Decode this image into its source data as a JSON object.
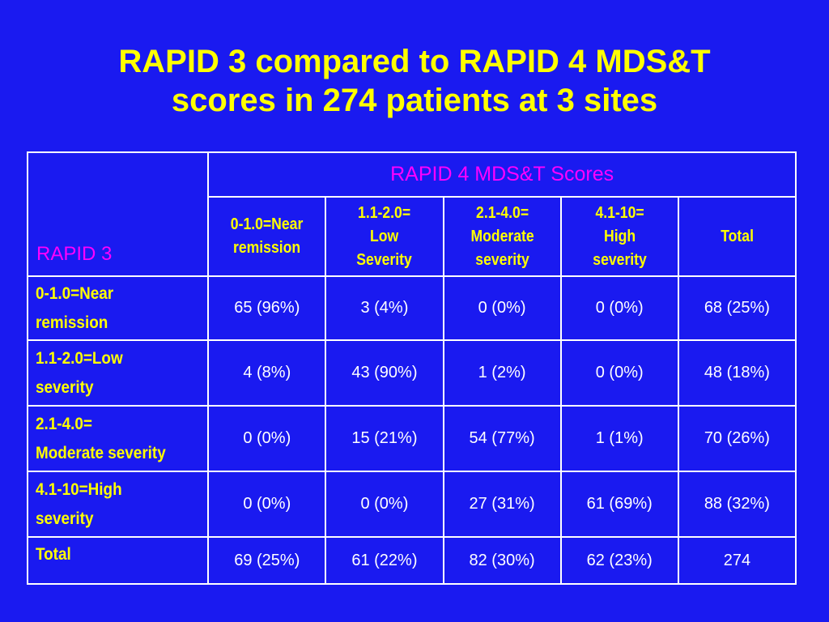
{
  "title": {
    "line1": "RAPID 3 compared to RAPID 4 MDS&T",
    "line2": "scores in 274 patients at 3 sites"
  },
  "colors": {
    "background": "#1a1af0",
    "title": "#ffff00",
    "header_magenta": "#ff00ff",
    "row_labels": "#ffff00",
    "cells": "#ffffff",
    "grid": "#ffffff"
  },
  "table": {
    "corner_label": "RAPID 3",
    "group_header": "RAPID 4 MDS&T Scores",
    "columns": [
      {
        "line1": "0-1.0=Near",
        "line2": "remission",
        "line3": ""
      },
      {
        "line1": "1.1-2.0=",
        "line2": "Low",
        "line3": "Severity"
      },
      {
        "line1": "2.1-4.0=",
        "line2": "Moderate",
        "line3": "severity"
      },
      {
        "line1": "4.1-10=",
        "line2": "High",
        "line3": "severity"
      },
      {
        "line1": "Total",
        "line2": "",
        "line3": ""
      }
    ],
    "rows": [
      {
        "label1": "0-1.0=Near",
        "label2": "remission",
        "cells": [
          "65 (96%)",
          "3 (4%)",
          "0 (0%)",
          "0 (0%)",
          "68 (25%)"
        ]
      },
      {
        "label1": "1.1-2.0=Low",
        "label2": "severity",
        "cells": [
          "4 (8%)",
          "43 (90%)",
          "1 (2%)",
          "0 (0%)",
          "48 (18%)"
        ]
      },
      {
        "label1": "2.1-4.0=",
        "label2": "Moderate severity",
        "cells": [
          "0 (0%)",
          "15 (21%)",
          "54 (77%)",
          "1 (1%)",
          "70 (26%)"
        ]
      },
      {
        "label1": "4.1-10=High",
        "label2": "severity",
        "cells": [
          "0 (0%)",
          "0 (0%)",
          "27 (31%)",
          "61 (69%)",
          "88 (32%)"
        ]
      },
      {
        "label1": "Total",
        "label2": "",
        "cells": [
          "69 (25%)",
          "61 (22%)",
          "82 (30%)",
          "62 (23%)",
          "274"
        ]
      }
    ]
  }
}
